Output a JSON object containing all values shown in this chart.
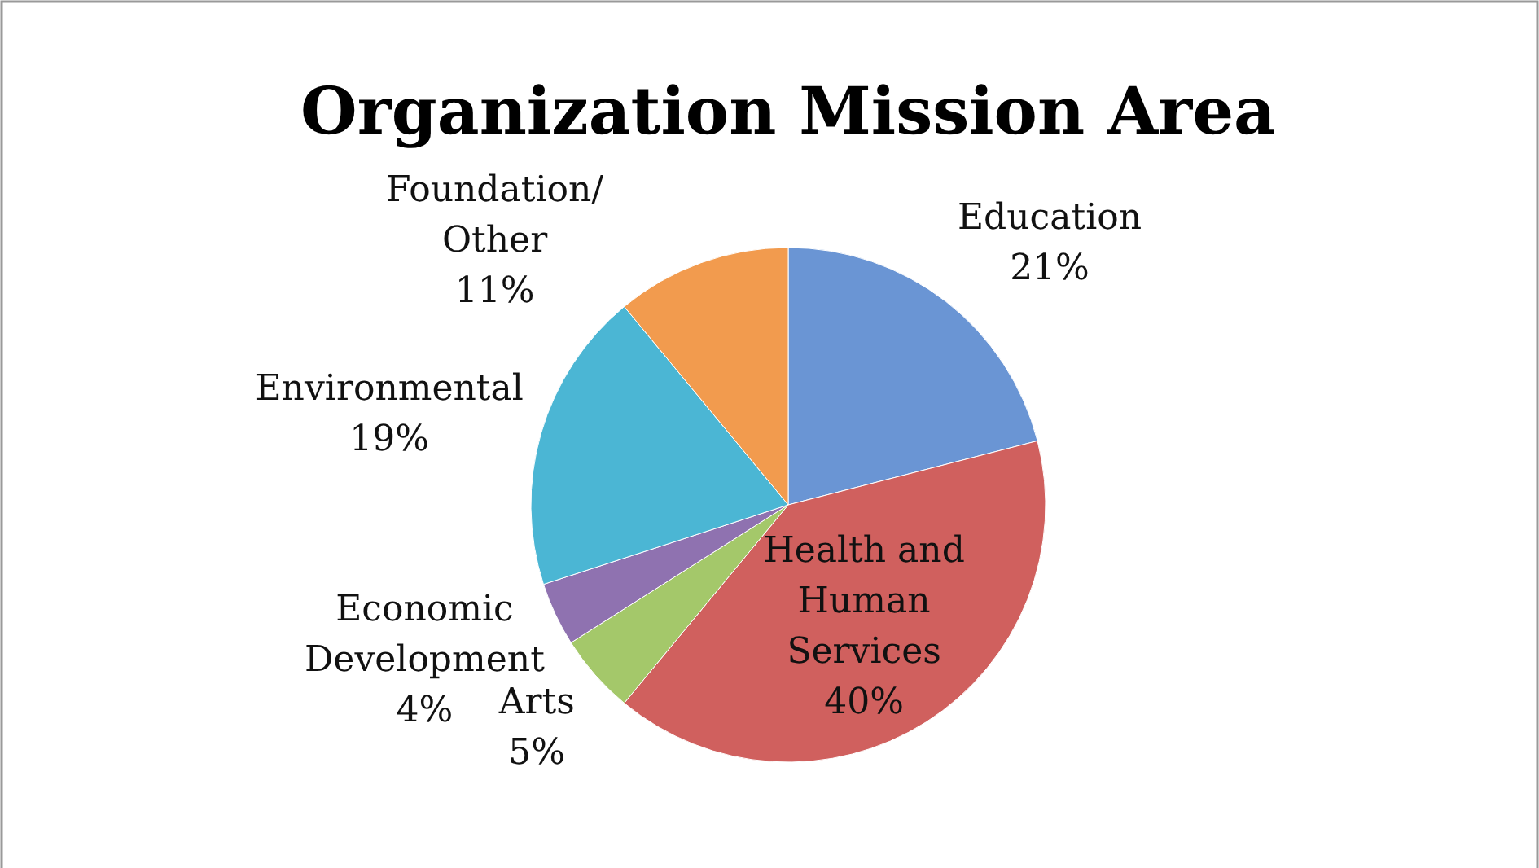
{
  "chart_data": {
    "type": "pie",
    "title": "Organization Mission Area",
    "categories": [
      "Education",
      "Health and Human Services",
      "Arts",
      "Economic Development",
      "Environmental",
      "Foundation/Other"
    ],
    "values": [
      21,
      40,
      5,
      4,
      19,
      11
    ],
    "colors": [
      "#6a95d4",
      "#d0605e",
      "#a4c86a",
      "#8f72b0",
      "#4bb6d4",
      "#f29b4e"
    ],
    "value_labels": [
      "21%",
      "40%",
      "5%",
      "4%",
      "19%",
      "11%"
    ]
  }
}
